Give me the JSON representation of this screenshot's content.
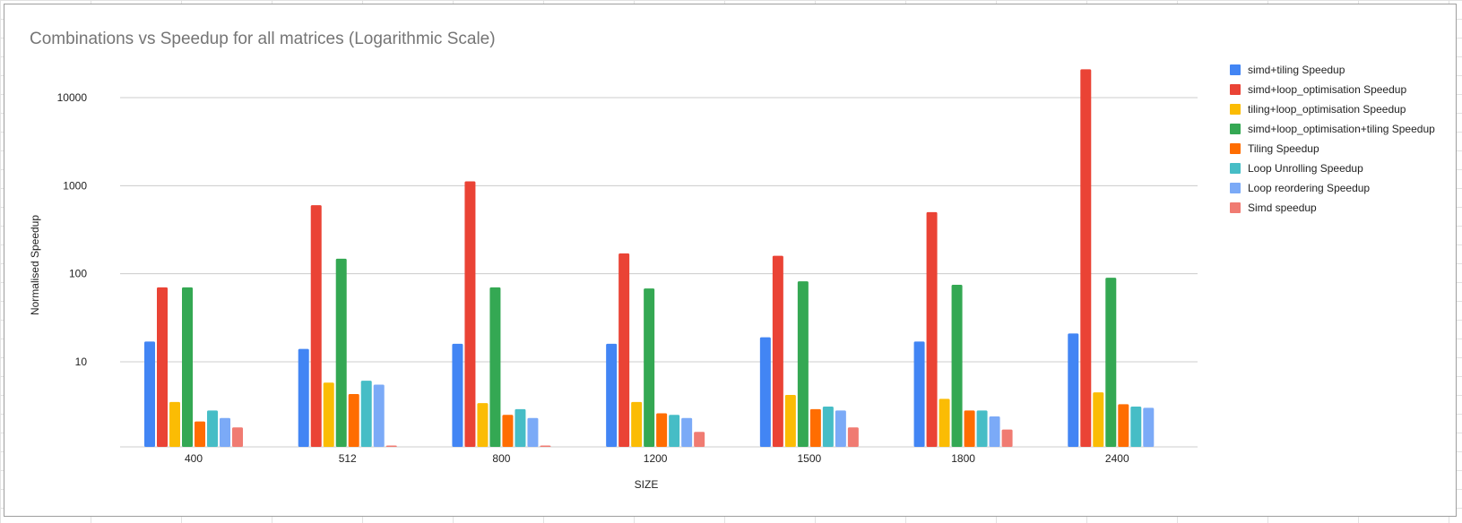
{
  "chart_data": {
    "type": "bar",
    "title": "Combinations vs Speedup for all matrices (Logarithmic Scale)",
    "xlabel": "SIZE",
    "ylabel": "Normalised Speedup",
    "scale": "log",
    "y_ticks": [
      10,
      100,
      1000,
      10000
    ],
    "y_tick_labels": [
      "10",
      "100",
      "1000",
      "10000"
    ],
    "ylim": [
      1.0,
      30000
    ],
    "grid": true,
    "legend_position": "right",
    "categories": [
      "400",
      "512",
      "800",
      "1200",
      "1500",
      "1800",
      "2400"
    ],
    "series": [
      {
        "name": "simd+tiling Speedup",
        "color": "#4285f4",
        "values": [
          17,
          14,
          16,
          16,
          19,
          17,
          21
        ]
      },
      {
        "name": "simd+loop_optimisation Speedup",
        "color": "#ea4335",
        "values": [
          70,
          600,
          1120,
          170,
          160,
          500,
          21000
        ]
      },
      {
        "name": "tiling+loop_optimisation Speedup",
        "color": "#fbbc04",
        "values": [
          3.5,
          5.8,
          3.4,
          3.5,
          4.2,
          3.8,
          4.5
        ]
      },
      {
        "name": "simd+loop_optimisation+tiling Speedup",
        "color": "#34a853",
        "values": [
          70,
          148,
          70,
          68,
          82,
          75,
          90
        ]
      },
      {
        "name": "Tiling Speedup",
        "color": "#ff6d01",
        "values": [
          2.1,
          4.3,
          2.5,
          2.6,
          2.9,
          2.8,
          3.3
        ]
      },
      {
        "name": "Loop Unrolling Speedup",
        "color": "#46bdc6",
        "values": [
          2.8,
          6.1,
          2.9,
          2.5,
          3.1,
          2.8,
          3.1
        ]
      },
      {
        "name": "Loop reordering Speedup",
        "color": "#7baaf7",
        "values": [
          2.3,
          5.5,
          2.3,
          2.3,
          2.8,
          2.4,
          3.0
        ]
      },
      {
        "name": "Simd speedup",
        "color": "#f07b72",
        "values": [
          1.8,
          1.05,
          1.1,
          1.6,
          1.8,
          1.7,
          null
        ]
      }
    ]
  }
}
